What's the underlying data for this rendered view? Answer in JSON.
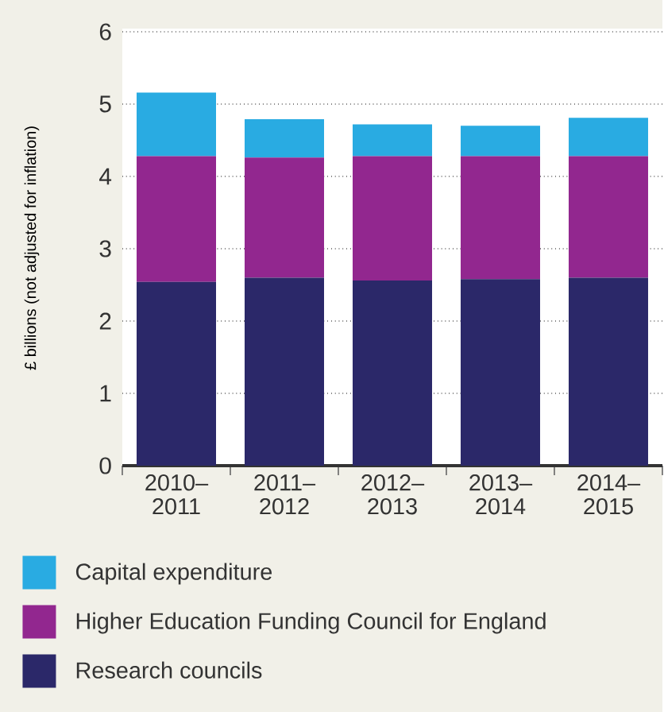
{
  "chart_data": {
    "type": "bar",
    "stacked": true,
    "ylabel": "£ billions (not adjusted for inflation)",
    "categories": [
      "2010–2011",
      "2011–2012",
      "2012–2013",
      "2013–2014",
      "2014–2015"
    ],
    "series": [
      {
        "name": "Research councils",
        "color": "#2b2869",
        "values": [
          2.54,
          2.6,
          2.56,
          2.58,
          2.6
        ]
      },
      {
        "name": "Higher Education Funding Council for England",
        "color": "#92278f",
        "values": [
          1.74,
          1.66,
          1.72,
          1.7,
          1.68
        ]
      },
      {
        "name": "Capital expenditure",
        "color": "#29abe2",
        "values": [
          0.88,
          0.53,
          0.44,
          0.42,
          0.53
        ]
      }
    ],
    "ylim": [
      0,
      6
    ],
    "yticks": [
      0,
      1,
      2,
      3,
      4,
      5,
      6
    ],
    "grid": "y",
    "legend": "bottom"
  }
}
